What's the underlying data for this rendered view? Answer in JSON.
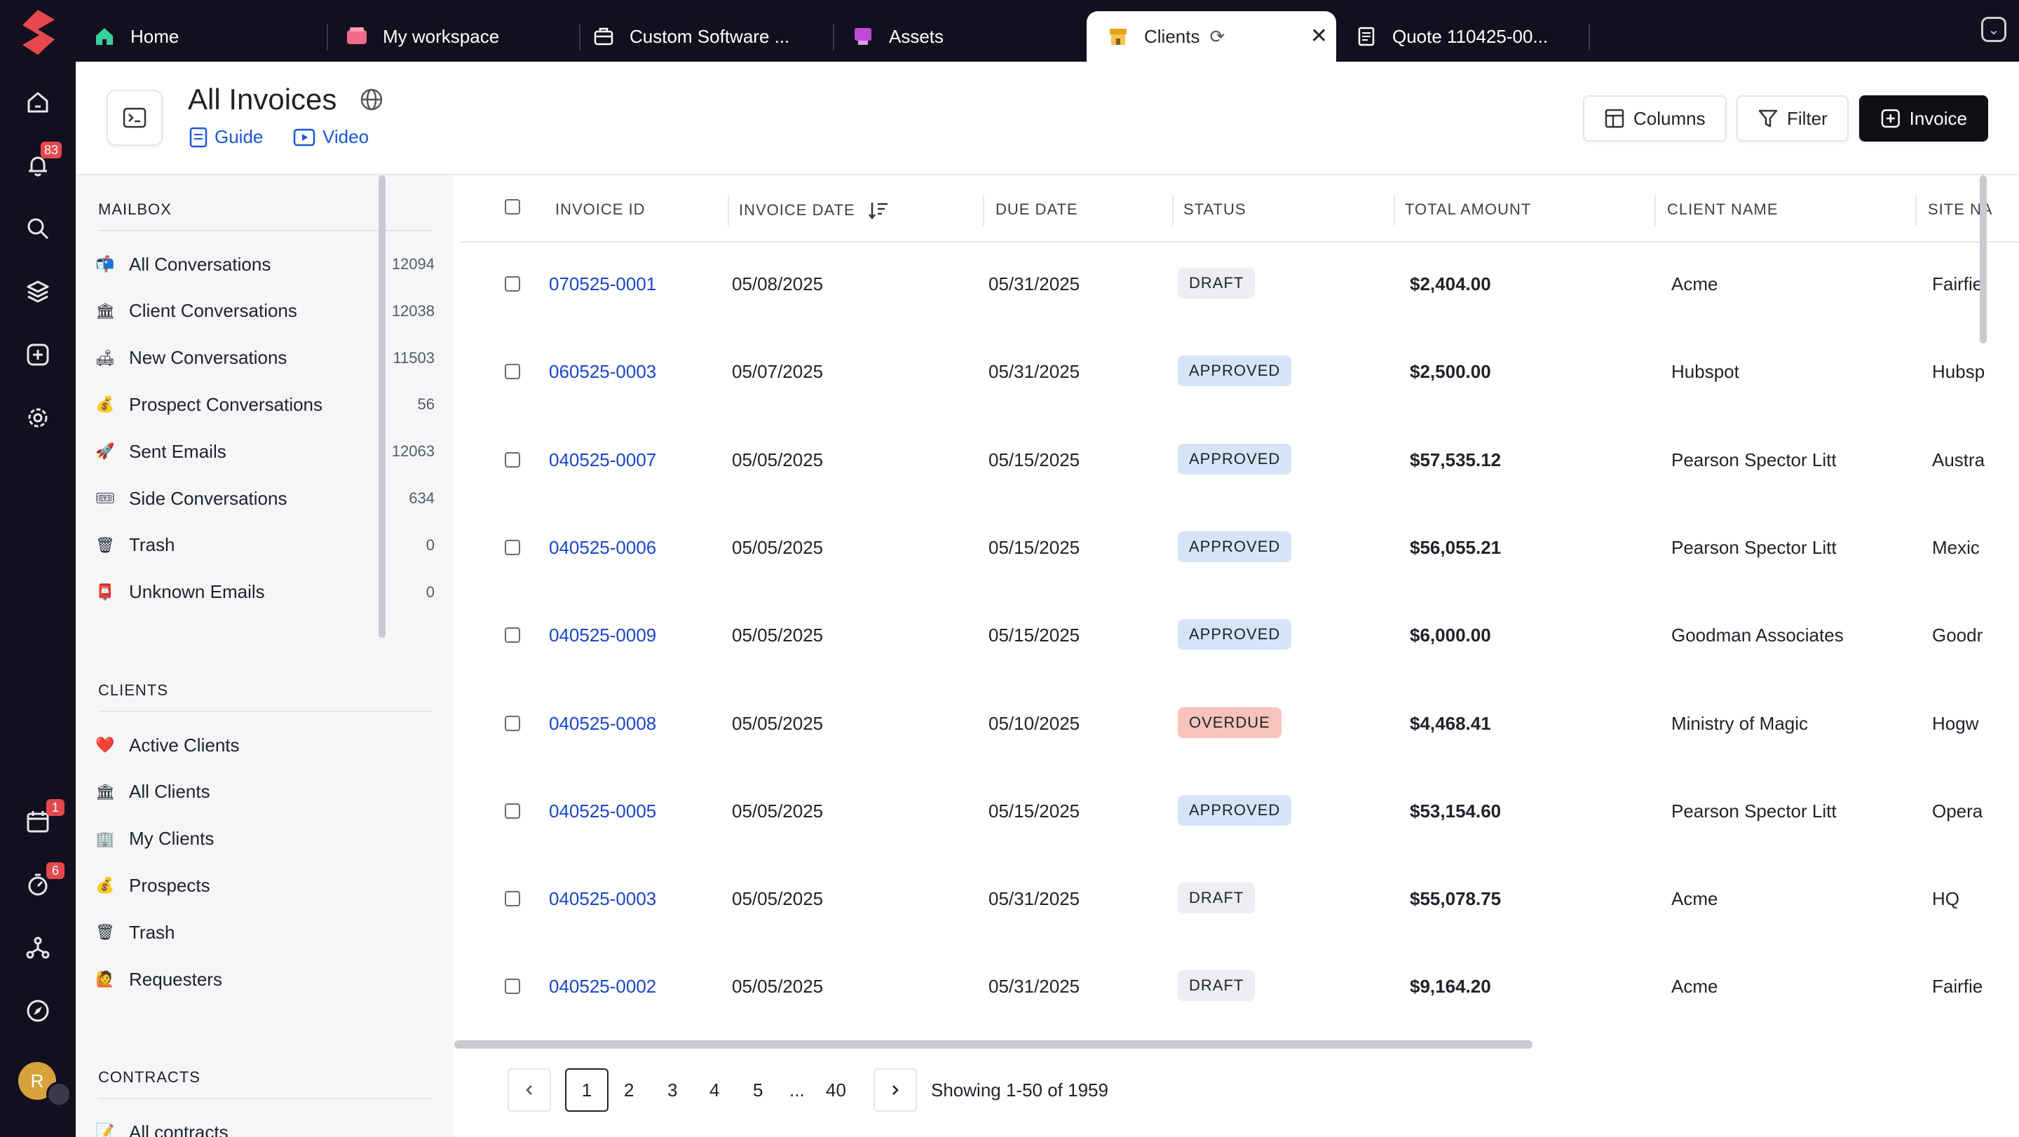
{
  "tabs": [
    {
      "label": "Home",
      "icon": "home-icon"
    },
    {
      "label": "My workspace",
      "icon": "workspace-icon"
    },
    {
      "label": "Custom Software ...",
      "icon": "briefcase-icon"
    },
    {
      "label": "Assets",
      "icon": "assets-icon"
    },
    {
      "label": "Clients",
      "icon": "store-icon",
      "active": true
    },
    {
      "label": "Quote 110425-00...",
      "icon": "document-icon"
    }
  ],
  "rail": {
    "notifications_badge": "83",
    "calendar_badge": "1",
    "timer_badge": "6",
    "avatar_initial": "R"
  },
  "header": {
    "title": "All Invoices",
    "guide_label": "Guide",
    "video_label": "Video",
    "columns_label": "Columns",
    "filter_label": "Filter",
    "invoice_label": "Invoice"
  },
  "sidebar": {
    "mailbox_title": "MAILBOX",
    "mailbox_items": [
      {
        "emoji": "📬",
        "label": "All Conversations",
        "count": "12094"
      },
      {
        "emoji": "🏛",
        "label": "Client Conversations",
        "count": "12038"
      },
      {
        "emoji": "🛋",
        "label": "New Conversations",
        "count": "11503"
      },
      {
        "emoji": "💰",
        "label": "Prospect Conversations",
        "count": "56"
      },
      {
        "emoji": "🚀",
        "label": "Sent Emails",
        "count": "12063"
      },
      {
        "emoji": "🎟",
        "label": "Side Conversations",
        "count": "634"
      },
      {
        "emoji": "🗑",
        "label": "Trash",
        "count": "0"
      },
      {
        "emoji": "📮",
        "label": "Unknown Emails",
        "count": "0"
      }
    ],
    "clients_title": "CLIENTS",
    "client_items": [
      {
        "emoji": "❤️",
        "label": "Active Clients"
      },
      {
        "emoji": "🏛",
        "label": "All Clients"
      },
      {
        "emoji": "🏢",
        "label": "My Clients"
      },
      {
        "emoji": "💰",
        "label": "Prospects"
      },
      {
        "emoji": "🗑",
        "label": "Trash"
      },
      {
        "emoji": "🙋",
        "label": "Requesters"
      }
    ],
    "contracts_title": "CONTRACTS",
    "contract_items": [
      {
        "emoji": "📝",
        "label": "All contracts"
      }
    ]
  },
  "table": {
    "columns": [
      "INVOICE ID",
      "INVOICE DATE",
      "DUE DATE",
      "STATUS",
      "TOTAL AMOUNT",
      "CLIENT NAME",
      "SITE NA"
    ],
    "rows": [
      {
        "id": "070525-0001",
        "date": "05/08/2025",
        "due": "05/31/2025",
        "status": "DRAFT",
        "status_kind": "draft",
        "amount": "$2,404.00",
        "client": "Acme",
        "site": "Fairfie"
      },
      {
        "id": "060525-0003",
        "date": "05/07/2025",
        "due": "05/31/2025",
        "status": "APPROVED",
        "status_kind": "approved",
        "amount": "$2,500.00",
        "client": "Hubspot",
        "site": "Hubsp"
      },
      {
        "id": "040525-0007",
        "date": "05/05/2025",
        "due": "05/15/2025",
        "status": "APPROVED",
        "status_kind": "approved",
        "amount": "$57,535.12",
        "client": "Pearson Spector Litt",
        "site": "Austra"
      },
      {
        "id": "040525-0006",
        "date": "05/05/2025",
        "due": "05/15/2025",
        "status": "APPROVED",
        "status_kind": "approved",
        "amount": "$56,055.21",
        "client": "Pearson Spector Litt",
        "site": "Mexic"
      },
      {
        "id": "040525-0009",
        "date": "05/05/2025",
        "due": "05/15/2025",
        "status": "APPROVED",
        "status_kind": "approved",
        "amount": "$6,000.00",
        "client": "Goodman Associates",
        "site": "Goodr"
      },
      {
        "id": "040525-0008",
        "date": "05/05/2025",
        "due": "05/10/2025",
        "status": "OVERDUE",
        "status_kind": "overdue",
        "amount": "$4,468.41",
        "client": "Ministry of Magic",
        "site": "Hogw"
      },
      {
        "id": "040525-0005",
        "date": "05/05/2025",
        "due": "05/15/2025",
        "status": "APPROVED",
        "status_kind": "approved",
        "amount": "$53,154.60",
        "client": "Pearson Spector Litt",
        "site": "Opera"
      },
      {
        "id": "040525-0003",
        "date": "05/05/2025",
        "due": "05/31/2025",
        "status": "DRAFT",
        "status_kind": "draft",
        "amount": "$55,078.75",
        "client": "Acme",
        "site": "HQ"
      },
      {
        "id": "040525-0002",
        "date": "05/05/2025",
        "due": "05/31/2025",
        "status": "DRAFT",
        "status_kind": "draft",
        "amount": "$9,164.20",
        "client": "Acme",
        "site": "Fairfie"
      }
    ]
  },
  "pagination": {
    "pages": [
      "1",
      "2",
      "3",
      "4",
      "5",
      "...",
      "40"
    ],
    "current": "1",
    "showing": "Showing 1-50 of 1959"
  },
  "colors": {
    "rail_bg": "#12101e",
    "link": "#1a45c9",
    "approved_bg": "#d5e5f7",
    "overdue_bg": "#f7c4bd",
    "draft_bg": "#eceef1",
    "badge": "#e5484d"
  }
}
